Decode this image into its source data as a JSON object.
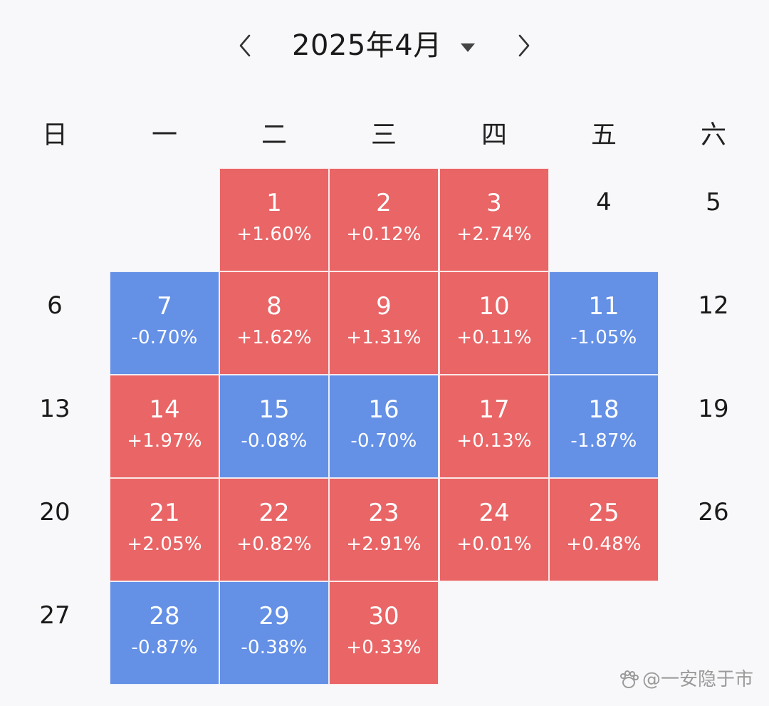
{
  "header": {
    "title": "2025年4月",
    "prev_icon": "chevron-left-icon",
    "next_icon": "chevron-right-icon",
    "dropdown_icon": "caret-down-icon"
  },
  "weekdays": [
    "日",
    "一",
    "二",
    "三",
    "四",
    "五",
    "六"
  ],
  "colors": {
    "up": "#e96566",
    "down": "#6490e6",
    "background": "#f8f8fa"
  },
  "days": [
    {
      "day": "1",
      "change": "+1.60%",
      "trend": "up"
    },
    {
      "day": "2",
      "change": "+0.12%",
      "trend": "up"
    },
    {
      "day": "3",
      "change": "+2.74%",
      "trend": "up"
    },
    {
      "day": "4",
      "change": "",
      "trend": "none"
    },
    {
      "day": "5",
      "change": "",
      "trend": "none"
    },
    {
      "day": "6",
      "change": "",
      "trend": "none"
    },
    {
      "day": "7",
      "change": "-0.70%",
      "trend": "down"
    },
    {
      "day": "8",
      "change": "+1.62%",
      "trend": "up"
    },
    {
      "day": "9",
      "change": "+1.31%",
      "trend": "up"
    },
    {
      "day": "10",
      "change": "+0.11%",
      "trend": "up"
    },
    {
      "day": "11",
      "change": "-1.05%",
      "trend": "down"
    },
    {
      "day": "12",
      "change": "",
      "trend": "none"
    },
    {
      "day": "13",
      "change": "",
      "trend": "none"
    },
    {
      "day": "14",
      "change": "+1.97%",
      "trend": "up"
    },
    {
      "day": "15",
      "change": "-0.08%",
      "trend": "down"
    },
    {
      "day": "16",
      "change": "-0.70%",
      "trend": "down"
    },
    {
      "day": "17",
      "change": "+0.13%",
      "trend": "up"
    },
    {
      "day": "18",
      "change": "-1.87%",
      "trend": "down"
    },
    {
      "day": "19",
      "change": "",
      "trend": "none"
    },
    {
      "day": "20",
      "change": "",
      "trend": "none"
    },
    {
      "day": "21",
      "change": "+2.05%",
      "trend": "up"
    },
    {
      "day": "22",
      "change": "+0.82%",
      "trend": "up"
    },
    {
      "day": "23",
      "change": "+2.91%",
      "trend": "up"
    },
    {
      "day": "24",
      "change": "+0.01%",
      "trend": "up"
    },
    {
      "day": "25",
      "change": "+0.48%",
      "trend": "up"
    },
    {
      "day": "26",
      "change": "",
      "trend": "none"
    },
    {
      "day": "27",
      "change": "",
      "trend": "none"
    },
    {
      "day": "28",
      "change": "-0.87%",
      "trend": "down"
    },
    {
      "day": "29",
      "change": "-0.38%",
      "trend": "down"
    },
    {
      "day": "30",
      "change": "+0.33%",
      "trend": "up"
    }
  ],
  "watermark": {
    "text": "@一安隐于市",
    "icon": "paw-logo-icon"
  }
}
